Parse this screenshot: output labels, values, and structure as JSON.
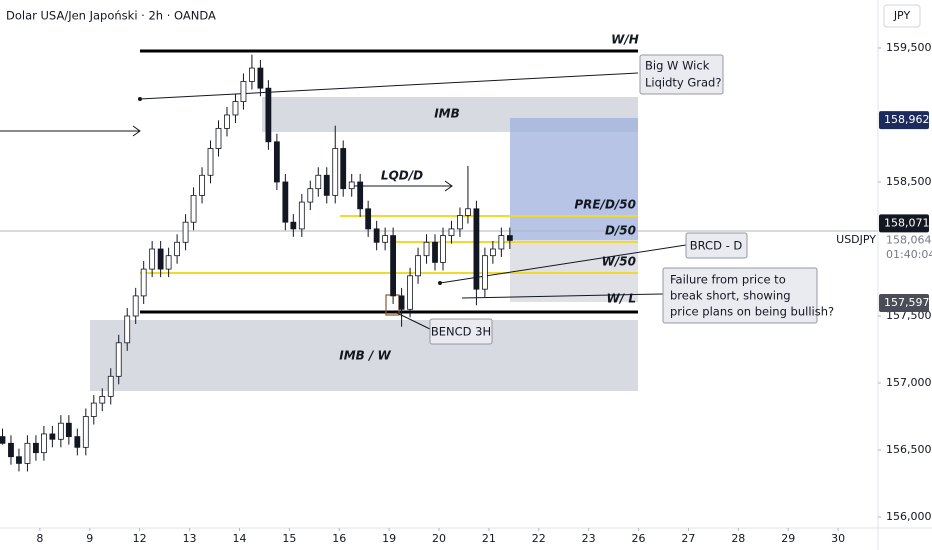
{
  "chart_data": {
    "type": "candlestick",
    "title": "Dolar USA/Jen Japoński · 2h · OANDA",
    "currency": "JPY",
    "symbol": "USDJPY",
    "countdown": "01:40:04",
    "last": {
      "value": 158.064,
      "label": "158,064"
    },
    "price_badges": [
      {
        "value": 158.962,
        "label": "158,962",
        "color": "#1c2a5e"
      },
      {
        "value": 158.071,
        "label": "158,071",
        "color": "#131722"
      },
      {
        "value": 157.597,
        "label": "157,597",
        "color": "#4a4d57"
      }
    ],
    "xlim": [
      -0.8,
      16.8
    ],
    "ylim": [
      155.918,
      159.858
    ],
    "xticks": [
      {
        "value": 0,
        "label": "8"
      },
      {
        "value": 1,
        "label": "9"
      },
      {
        "value": 2,
        "label": "12"
      },
      {
        "value": 3,
        "label": "13"
      },
      {
        "value": 4,
        "label": "14"
      },
      {
        "value": 5,
        "label": "15"
      },
      {
        "value": 6,
        "label": "16"
      },
      {
        "value": 7,
        "label": "19"
      },
      {
        "value": 8,
        "label": "20"
      },
      {
        "value": 9,
        "label": "21"
      },
      {
        "value": 10,
        "label": "22"
      },
      {
        "value": 11,
        "label": "23"
      },
      {
        "value": 12,
        "label": "26"
      },
      {
        "value": 13,
        "label": "27"
      },
      {
        "value": 14,
        "label": "28"
      },
      {
        "value": 15,
        "label": "29"
      },
      {
        "value": 16,
        "label": "30"
      }
    ],
    "yticks": [
      {
        "value": 156,
        "label": "156,000"
      },
      {
        "value": 156.5,
        "label": "156,500"
      },
      {
        "value": 157,
        "label": "157,000"
      },
      {
        "value": 157.5,
        "label": "157,500"
      },
      {
        "value": 158.5,
        "label": "158,500"
      },
      {
        "value": 159.5,
        "label": "159,500"
      }
    ],
    "up_color": "#ffffff",
    "down_color": "#131722",
    "x": [
      -0.75,
      -0.58,
      -0.42,
      -0.25,
      -0.08,
      0.08,
      0.25,
      0.42,
      0.58,
      0.75,
      0.92,
      1.08,
      1.25,
      1.42,
      1.58,
      1.75,
      1.92,
      2.08,
      2.25,
      2.42,
      2.58,
      2.75,
      2.92,
      3.08,
      3.25,
      3.42,
      3.58,
      3.75,
      3.92,
      4.08,
      4.25,
      4.42,
      4.58,
      4.75,
      4.92,
      5.08,
      5.25,
      5.42,
      5.58,
      5.75,
      5.92,
      6.08,
      6.25,
      6.42,
      6.58,
      6.75,
      6.92,
      7.08,
      7.25,
      7.42,
      7.58,
      7.75,
      7.92,
      8.08,
      8.25,
      8.42,
      8.58,
      8.75,
      8.92,
      9.08,
      9.25,
      9.42
    ],
    "open": [
      156.6,
      156.55,
      156.45,
      156.4,
      156.55,
      156.48,
      156.62,
      156.58,
      156.7,
      156.6,
      156.52,
      156.75,
      156.85,
      156.9,
      157.05,
      157.3,
      157.5,
      157.65,
      157.85,
      158,
      157.85,
      157.95,
      158.05,
      158.2,
      158.4,
      158.55,
      158.75,
      158.9,
      159,
      159.1,
      159.25,
      159.35,
      159.2,
      158.8,
      158.5,
      158.2,
      158.15,
      158.35,
      158.45,
      158.55,
      158.4,
      158.75,
      158.45,
      158.5,
      158.3,
      158.15,
      158.05,
      158.1,
      157.65,
      157.55,
      157.8,
      157.95,
      158.05,
      157.9,
      158.1,
      158.15,
      158.25,
      158.3,
      157.7,
      157.95,
      158,
      158.1
    ],
    "high": [
      156.66,
      156.61,
      156.51,
      156.61,
      156.61,
      156.68,
      156.68,
      156.76,
      156.76,
      156.66,
      156.81,
      156.91,
      156.96,
      157.11,
      157.36,
      157.56,
      157.71,
      157.91,
      158.06,
      158.06,
      158.01,
      158.11,
      158.26,
      158.46,
      158.61,
      158.81,
      158.96,
      159.06,
      159.16,
      159.31,
      159.45,
      159.41,
      159.26,
      158.86,
      158.56,
      158.26,
      158.41,
      158.51,
      158.61,
      158.61,
      158.92,
      158.81,
      158.56,
      158.56,
      158.36,
      158.21,
      158.16,
      158.16,
      157.71,
      157.86,
      158.01,
      158.11,
      158.11,
      158.16,
      158.21,
      158.31,
      158.62,
      158.36,
      158.01,
      158.06,
      158.16,
      158.16
    ],
    "low": [
      156.54,
      156.39,
      156.34,
      156.34,
      156.42,
      156.42,
      156.52,
      156.52,
      156.54,
      156.46,
      156.46,
      156.69,
      156.79,
      156.84,
      156.99,
      157.24,
      157.44,
      157.59,
      157.79,
      157.79,
      157.79,
      157.89,
      157.99,
      158.14,
      158.34,
      158.49,
      158.69,
      158.84,
      158.94,
      159.04,
      159.19,
      159.14,
      158.74,
      158.44,
      158.14,
      158.09,
      158.09,
      158.29,
      158.39,
      158.34,
      158.34,
      158.39,
      158.39,
      158.24,
      158.09,
      157.99,
      157.99,
      157.59,
      157.42,
      157.49,
      157.74,
      157.89,
      157.84,
      157.84,
      158.04,
      158.09,
      158.19,
      157.58,
      157.64,
      157.89,
      157.94,
      158
    ],
    "close": [
      156.55,
      156.45,
      156.4,
      156.55,
      156.48,
      156.62,
      156.58,
      156.7,
      156.6,
      156.52,
      156.75,
      156.85,
      156.9,
      157.05,
      157.3,
      157.5,
      157.65,
      157.85,
      158,
      157.85,
      157.95,
      158.05,
      158.2,
      158.4,
      158.55,
      158.75,
      158.9,
      159,
      159.1,
      159.25,
      159.35,
      159.2,
      158.8,
      158.5,
      158.2,
      158.15,
      158.35,
      158.45,
      158.55,
      158.4,
      158.75,
      158.45,
      158.5,
      158.3,
      158.15,
      158.05,
      158.1,
      157.65,
      157.55,
      157.8,
      157.95,
      158.05,
      157.9,
      158.1,
      158.15,
      158.25,
      158.3,
      157.7,
      157.95,
      158,
      158.1,
      158.064
    ],
    "annotations": {
      "wh": "W/H",
      "imb": "IMB",
      "lqd": "LQD/D",
      "pre": "PRE/D/50",
      "d50": "D/50",
      "w50": "W/50",
      "wl": "W/ L",
      "imbw": "IMB / W",
      "bencd": "BENCD 3H",
      "brcd": "BRCD - D",
      "wick": [
        "Big W Wick",
        "Liqidty Grad?"
      ],
      "failure": [
        "Failure from price to",
        "break short, showing",
        "price plans on being bullish?"
      ]
    }
  }
}
